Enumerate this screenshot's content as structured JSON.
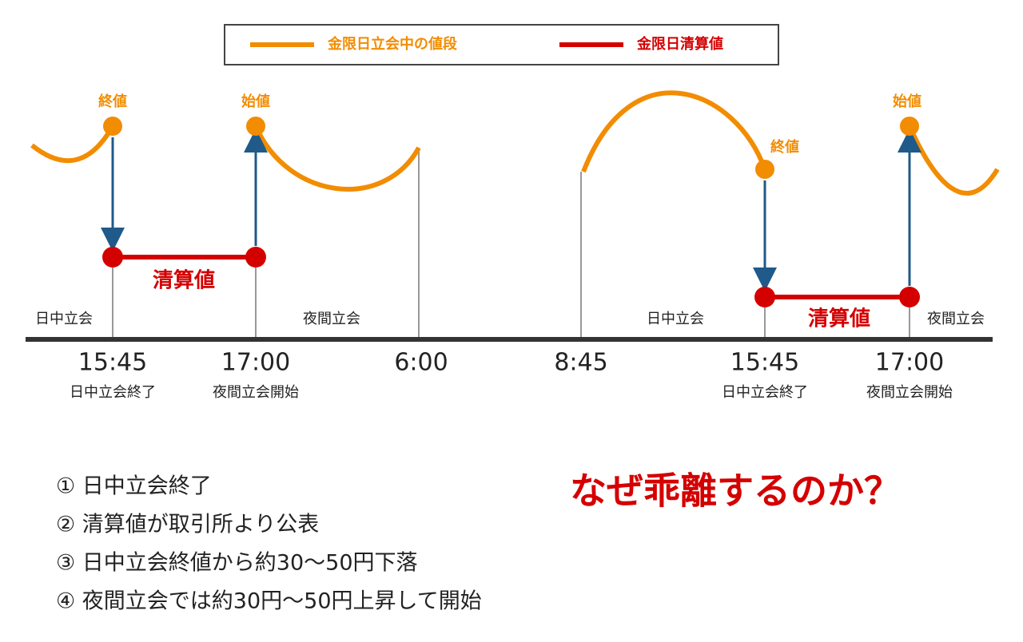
{
  "legend": [
    {
      "label": "金限日立会中の値段"
    },
    {
      "label": "金限日清算値"
    }
  ],
  "price_labels": [
    "終値",
    "始値",
    "終値",
    "始値"
  ],
  "settlement_labels": [
    "清算値",
    "清算値"
  ],
  "sessions": [
    "日中立会",
    "夜間立会",
    "日中立会",
    "夜間立会"
  ],
  "timeline": [
    {
      "time": "15:45",
      "caption": "日中立会終了"
    },
    {
      "time": "17:00",
      "caption": "夜間立会開始"
    },
    {
      "time": "6:00"
    },
    {
      "time": "8:45"
    },
    {
      "time": "15:45",
      "caption": "日中立会終了"
    },
    {
      "time": "17:00",
      "caption": "夜間立会開始"
    }
  ],
  "steps": [
    "① 日中立会終了",
    "② 清算値が取引所より公表",
    "③ 日中立会終値から約30～50円下落",
    "④ 夜間立会では約30円～50円上昇して開始"
  ],
  "headline": "なぜ乖離するのか？"
}
